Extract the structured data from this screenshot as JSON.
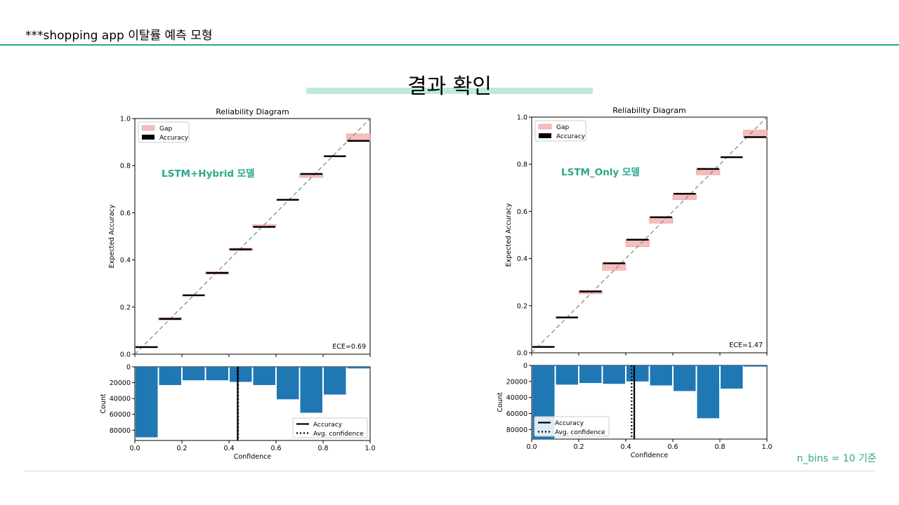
{
  "page": {
    "header_title": "***shopping app 이탈률 예측 모형",
    "section_title": "결과 확인",
    "footnote": "n_bins = 10 기준",
    "accent_color": "#2aa88a",
    "section_bar_color": "#bfe9dd"
  },
  "chart_data": [
    {
      "type": "bar",
      "title": "Reliability Diagram",
      "model_label": "LSTM+Hybrid 모델",
      "ece_text": "ECE=0.69",
      "xlabel": "Confidence",
      "ylabel": "Expected Accuracy",
      "xlim": [
        0,
        1
      ],
      "ylim": [
        0,
        1
      ],
      "bins": [
        0.05,
        0.15,
        0.25,
        0.35,
        0.45,
        0.55,
        0.65,
        0.75,
        0.85,
        0.95
      ],
      "accuracy": [
        0.03,
        0.15,
        0.25,
        0.345,
        0.445,
        0.54,
        0.655,
        0.765,
        0.84,
        0.905
      ],
      "gap_top": [
        0.03,
        0.155,
        0.25,
        0.35,
        0.45,
        0.55,
        0.655,
        0.765,
        0.84,
        0.935
      ],
      "gap_bottom": [
        0.03,
        0.145,
        0.25,
        0.34,
        0.44,
        0.54,
        0.655,
        0.75,
        0.84,
        0.905
      ],
      "legend": [
        "Gap",
        "Accuracy"
      ],
      "legend_position": "top-left",
      "count_ylabel": "Count",
      "count_yticks": [
        0,
        20000,
        40000,
        60000,
        80000
      ],
      "count_ymax": 93000,
      "counts": [
        89000,
        23000,
        17000,
        17000,
        19000,
        23000,
        41000,
        58000,
        35000,
        2000
      ],
      "avg_accuracy": 0.437,
      "avg_confidence": 0.439,
      "count_legend": [
        "Accuracy",
        "Avg. confidence"
      ],
      "count_legend_position": "bottom-right",
      "xticks": [
        0.0,
        0.2,
        0.4,
        0.6,
        0.8,
        1.0
      ],
      "yticks": [
        0.0,
        0.2,
        0.4,
        0.6,
        0.8,
        1.0
      ]
    },
    {
      "type": "bar",
      "title": "Reliability Diagram",
      "model_label": "LSTM_Only 모델",
      "ece_text": "ECE=1.47",
      "xlabel": "Confidence",
      "ylabel": "Expected Accuracy",
      "xlim": [
        0,
        1
      ],
      "ylim": [
        0,
        1
      ],
      "bins": [
        0.05,
        0.15,
        0.25,
        0.35,
        0.45,
        0.55,
        0.65,
        0.75,
        0.85,
        0.95
      ],
      "accuracy": [
        0.025,
        0.15,
        0.26,
        0.38,
        0.48,
        0.575,
        0.675,
        0.78,
        0.83,
        0.915
      ],
      "gap_top": [
        0.025,
        0.15,
        0.265,
        0.38,
        0.48,
        0.575,
        0.675,
        0.78,
        0.83,
        0.945
      ],
      "gap_bottom": [
        0.025,
        0.15,
        0.25,
        0.35,
        0.45,
        0.55,
        0.65,
        0.755,
        0.83,
        0.915
      ],
      "legend": [
        "Gap",
        "Accuracy"
      ],
      "legend_position": "top-left",
      "count_ylabel": "Count",
      "count_yticks": [
        0,
        20000,
        40000,
        60000,
        80000
      ],
      "count_ymax": 92000,
      "counts": [
        92000,
        24000,
        22000,
        23000,
        20000,
        25000,
        32000,
        66000,
        29000,
        1500
      ],
      "avg_accuracy": 0.436,
      "avg_confidence": 0.425,
      "count_legend": [
        "Accuracy",
        "Avg. confidence"
      ],
      "count_legend_position": "bottom-left",
      "xticks": [
        0.0,
        0.2,
        0.4,
        0.6,
        0.8,
        1.0
      ],
      "yticks": [
        0.0,
        0.2,
        0.4,
        0.6,
        0.8,
        1.0
      ]
    }
  ]
}
